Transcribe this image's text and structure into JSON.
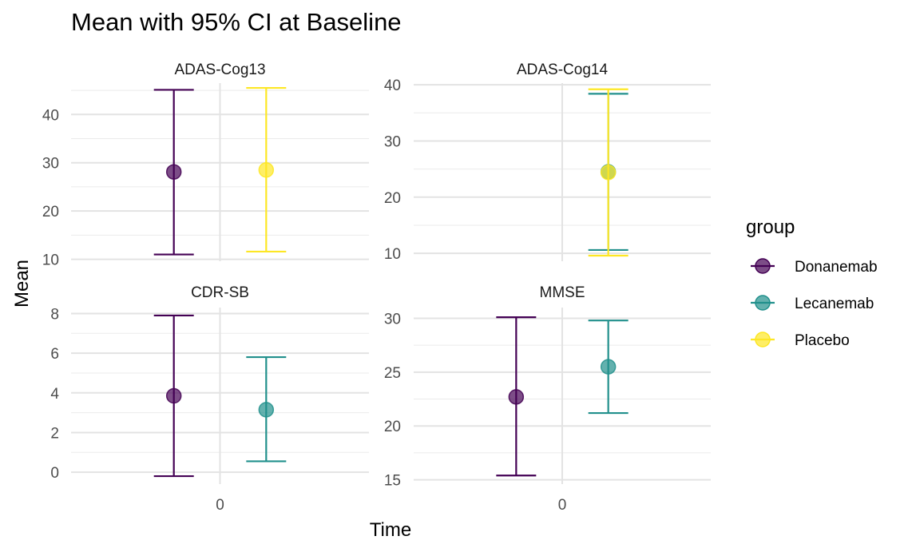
{
  "title": "Mean with 95% CI at Baseline",
  "chart_data": {
    "type": "scatter",
    "title": "Mean with 95% CI at Baseline",
    "xlabel": "Time",
    "ylabel": "Mean",
    "x_ticks": [
      "0"
    ],
    "grid": true,
    "legend": {
      "title": "group",
      "position": "right",
      "entries": [
        {
          "name": "Donanemab",
          "color": "#440154"
        },
        {
          "name": "Lecanemab",
          "color": "#21908C"
        },
        {
          "name": "Placebo",
          "color": "#FDE725"
        }
      ]
    },
    "facets": [
      {
        "name": "ADAS-Cog13",
        "ylim": [
          9.6,
          46.5
        ],
        "y_ticks": [
          10,
          20,
          30,
          40
        ],
        "series": [
          {
            "group": "Donanemab",
            "x": 0,
            "mean": 28.1,
            "lower": 11.0,
            "upper": 45.1
          },
          {
            "group": "Placebo",
            "x": 0,
            "mean": 28.5,
            "lower": 11.6,
            "upper": 45.5
          }
        ]
      },
      {
        "name": "ADAS-Cog14",
        "ylim": [
          8.6,
          40.3
        ],
        "y_ticks": [
          10,
          20,
          30,
          40
        ],
        "series": [
          {
            "group": "Lecanemab",
            "x": 0,
            "mean": 24.5,
            "lower": 10.6,
            "upper": 38.4
          },
          {
            "group": "Placebo",
            "x": 0,
            "mean": 24.4,
            "lower": 9.6,
            "upper": 39.2
          }
        ]
      },
      {
        "name": "CDR-SB",
        "ylim": [
          -0.6,
          8.3
        ],
        "y_ticks": [
          0,
          2,
          4,
          6,
          8
        ],
        "series": [
          {
            "group": "Donanemab",
            "x": 0,
            "mean": 3.85,
            "lower": -0.2,
            "upper": 7.9
          },
          {
            "group": "Lecanemab",
            "x": 0,
            "mean": 3.15,
            "lower": 0.55,
            "upper": 5.8
          }
        ]
      },
      {
        "name": "MMSE",
        "ylim": [
          14.6,
          31.0
        ],
        "y_ticks": [
          15,
          20,
          25,
          30
        ],
        "series": [
          {
            "group": "Donanemab",
            "x": 0,
            "mean": 22.7,
            "lower": 15.4,
            "upper": 30.1
          },
          {
            "group": "Lecanemab",
            "x": 0,
            "mean": 25.5,
            "lower": 21.2,
            "upper": 29.8
          }
        ]
      }
    ]
  }
}
